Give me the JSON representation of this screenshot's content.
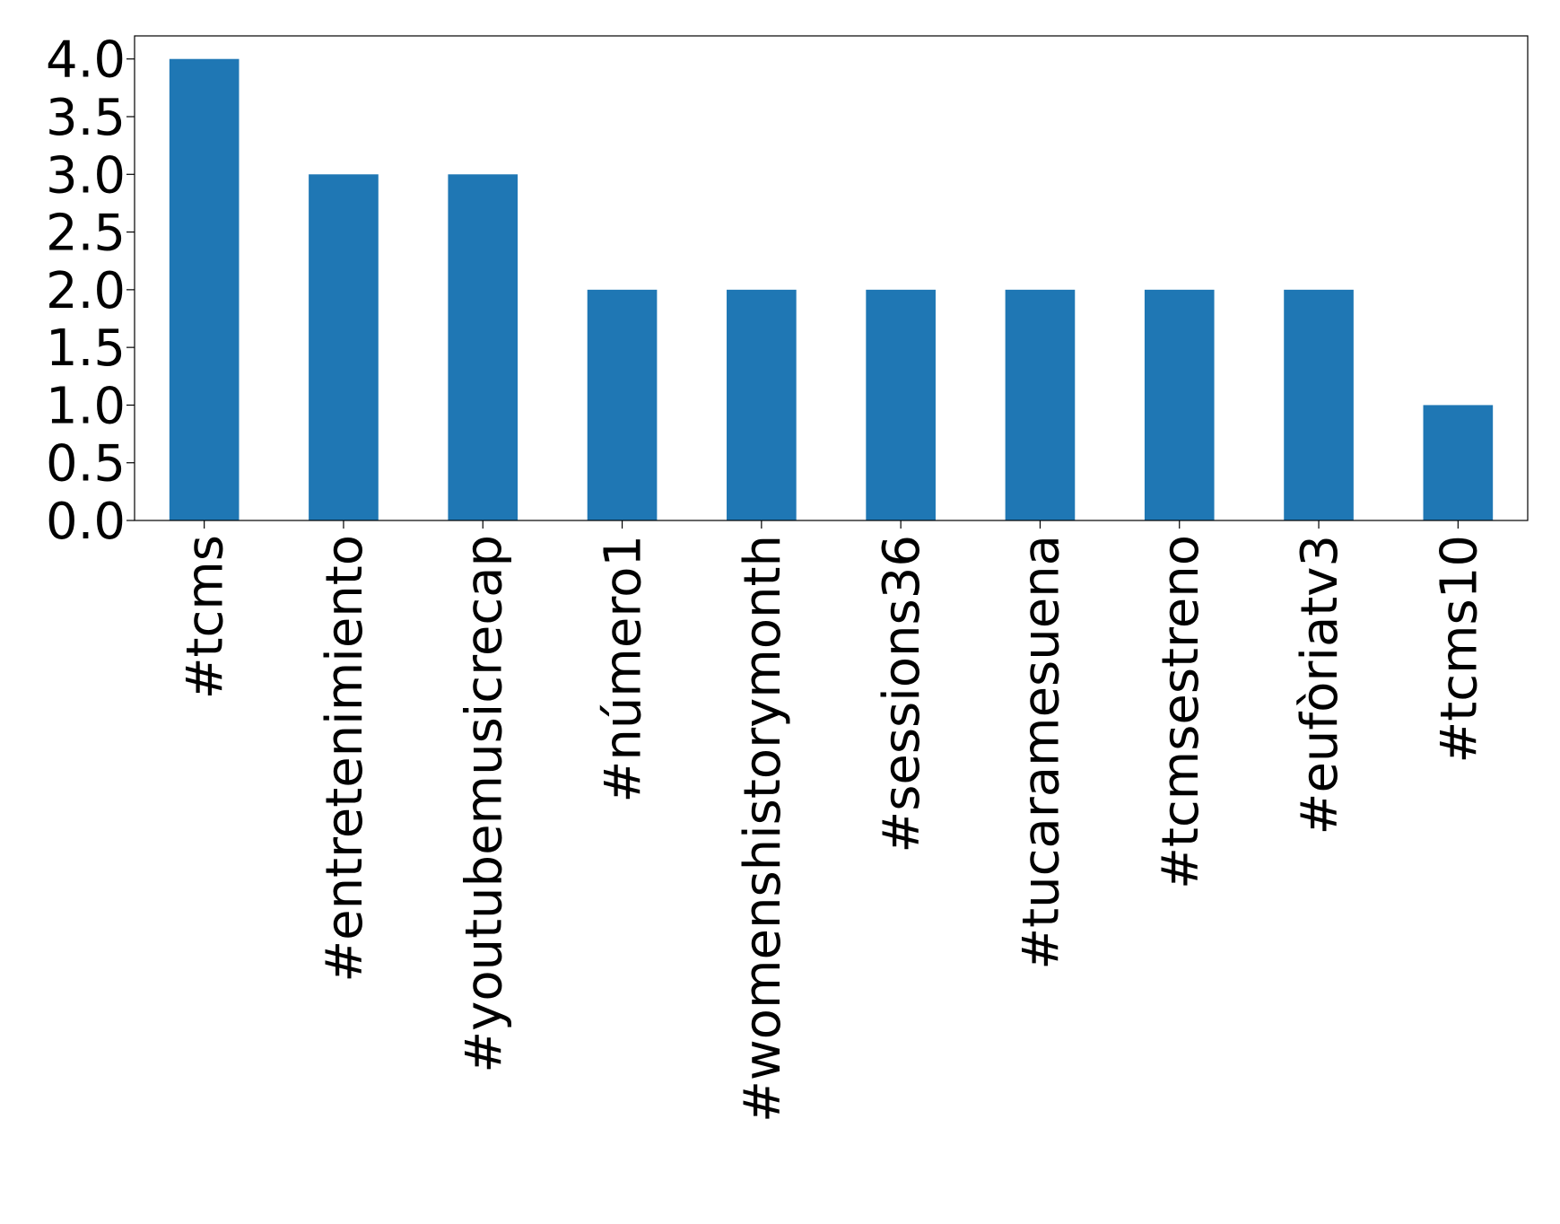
{
  "chart_data": {
    "type": "bar",
    "title": "",
    "xlabel": "",
    "ylabel": "",
    "categories": [
      "#tcms",
      "#entretenimiento",
      "#youtubemusicrecap",
      "#número1",
      "#womenshistorymonth",
      "#sessions36",
      "#tucaramesuena",
      "#tcmsestreno",
      "#eufòriatv3",
      "#tcms10"
    ],
    "values": [
      4,
      3,
      3,
      2,
      2,
      2,
      2,
      2,
      2,
      1
    ],
    "ylim": [
      0,
      4.2
    ],
    "yticks": [
      "0.0",
      "0.5",
      "1.0",
      "1.5",
      "2.0",
      "2.5",
      "3.0",
      "3.5",
      "4.0"
    ],
    "bar_color": "#1f77b4",
    "grid": false,
    "legend": "none"
  }
}
